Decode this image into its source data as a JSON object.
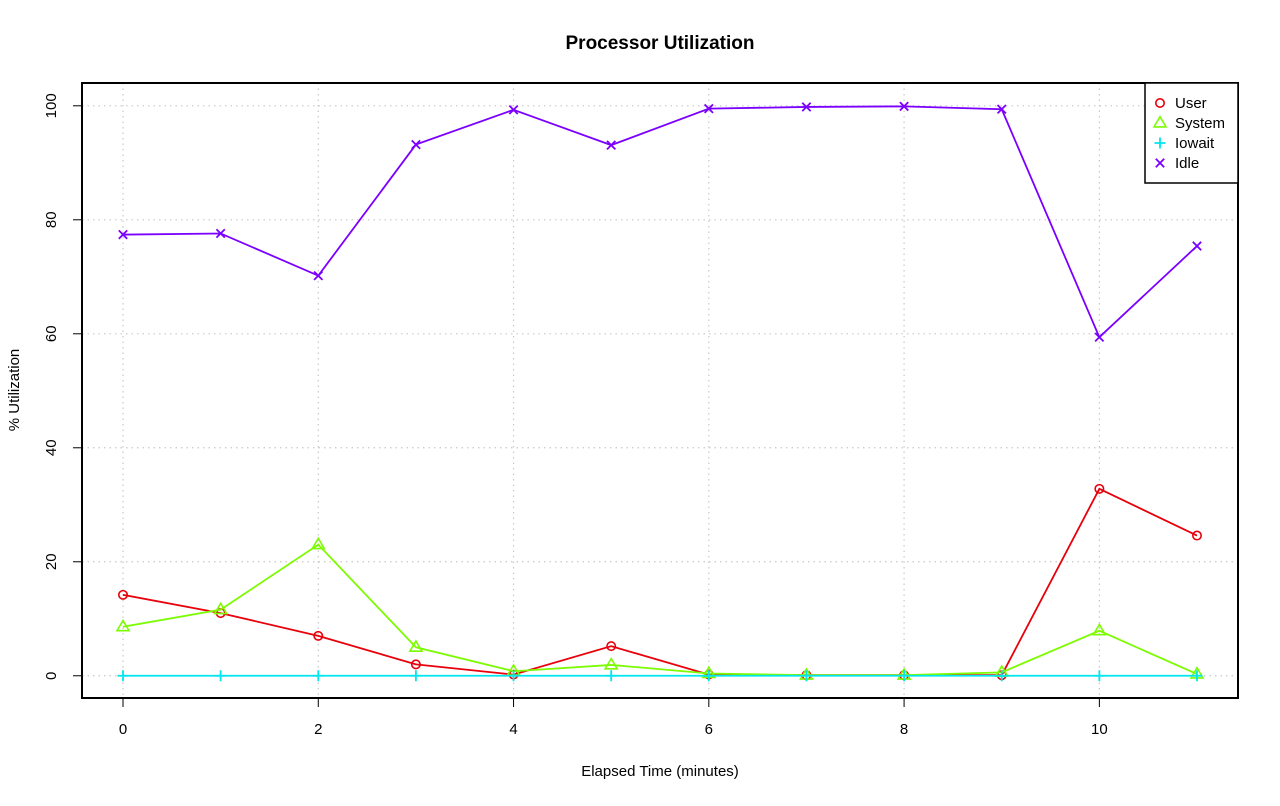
{
  "chart_data": {
    "type": "line",
    "title": "Processor Utilization",
    "xlabel": "Elapsed Time (minutes)",
    "ylabel": "% Utilization",
    "x": [
      0,
      1,
      2,
      3,
      4,
      5,
      6,
      7,
      8,
      9,
      10,
      11
    ],
    "xlim": [
      -0.42,
      11.42
    ],
    "ylim": [
      -3.9,
      104
    ],
    "x_ticks": [
      "0",
      "2",
      "4",
      "6",
      "8",
      "10"
    ],
    "y_ticks": [
      "0",
      "20",
      "40",
      "60",
      "80",
      "100"
    ],
    "grid": true,
    "grid_style": "dotted",
    "legend_position": "top-right",
    "series": [
      {
        "name": "User",
        "color": "#e8000b",
        "marker": "circle",
        "values": [
          14.2,
          11.0,
          7.0,
          2.0,
          0.2,
          5.2,
          0.2,
          0.1,
          0.1,
          0.1,
          32.8,
          24.6
        ]
      },
      {
        "name": "System",
        "color": "#7cfc00",
        "marker": "triangle",
        "values": [
          8.6,
          11.6,
          23.0,
          5.0,
          0.8,
          1.9,
          0.4,
          0.1,
          0.1,
          0.6,
          7.9,
          0.3
        ]
      },
      {
        "name": "Iowait",
        "color": "#00e5ee",
        "marker": "plus",
        "values": [
          0,
          0,
          0,
          0,
          0,
          0,
          0,
          0,
          0,
          0,
          0,
          0
        ]
      },
      {
        "name": "Idle",
        "color": "#7b00ff",
        "marker": "cross",
        "values": [
          77.4,
          77.6,
          70.2,
          93.2,
          99.3,
          93.1,
          99.5,
          99.8,
          99.9,
          99.4,
          59.4,
          75.4
        ]
      }
    ]
  }
}
